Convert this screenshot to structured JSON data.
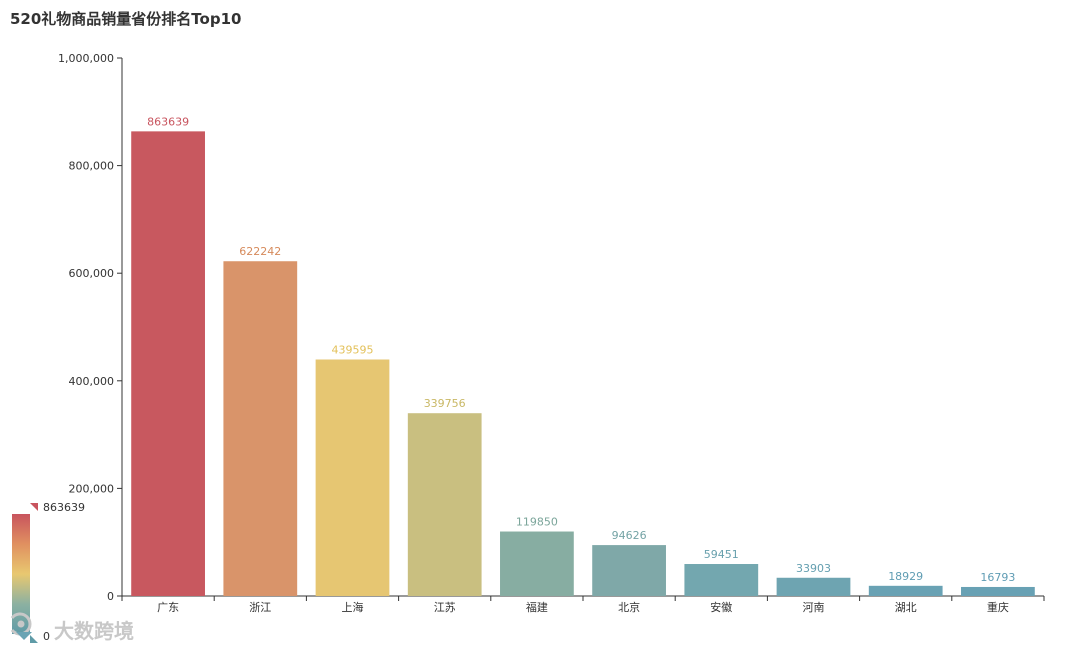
{
  "chart_data": {
    "type": "bar",
    "title": "520礼物商品销量省份排名Top10",
    "categories": [
      "广东",
      "浙江",
      "上海",
      "江苏",
      "福建",
      "北京",
      "安徽",
      "河南",
      "湖北",
      "重庆"
    ],
    "values": [
      863639,
      622242,
      439595,
      339756,
      119850,
      94626,
      59451,
      33903,
      18929,
      16793
    ],
    "ylim": [
      0,
      1000000
    ],
    "yticks": [
      0,
      200000,
      400000,
      600000,
      800000,
      1000000
    ],
    "ytick_labels": [
      "0",
      "200,000",
      "400,000",
      "600,000",
      "800,000",
      "1,000,000"
    ],
    "grid": false,
    "legend": "none",
    "visual_map": {
      "min": 0,
      "max": 863639,
      "min_label": "0",
      "max_label": "863639",
      "placement": "bottom-left",
      "colors": [
        "#5f9ba7",
        "#8cb1a1",
        "#e8c870",
        "#e09060",
        "#c8545e"
      ]
    },
    "bar_colors": [
      "#c8585f",
      "#d9946a",
      "#e6c672",
      "#c9bf80",
      "#87ada2",
      "#7fa8a8",
      "#73a7af",
      "#6ea4b1",
      "#69a2b4",
      "#68a1b4"
    ],
    "label_colors": [
      "#c8545e",
      "#d68a5b",
      "#e3c15a",
      "#c9b865",
      "#7ba59a",
      "#74a3a5",
      "#68a0ad",
      "#649fb0",
      "#609db3",
      "#5f9cb4"
    ]
  },
  "watermark": {
    "text": "大数跨境",
    "icon": "logo-mark-icon"
  }
}
